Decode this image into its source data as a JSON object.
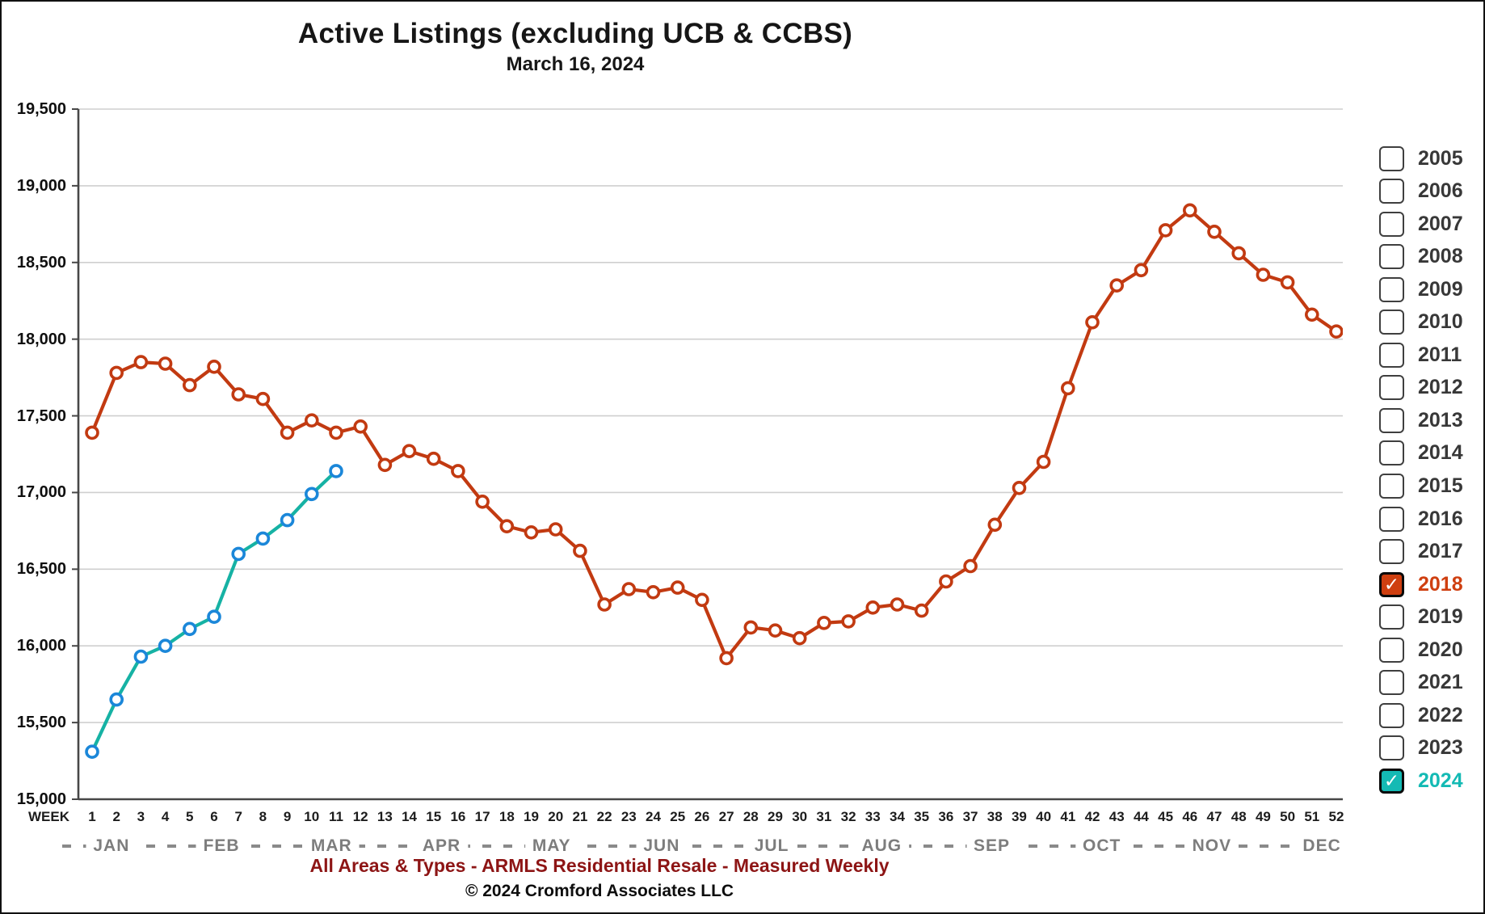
{
  "title": "Active Listings (excluding UCB & CCBS)",
  "subtitle": "March 16, 2024",
  "footer_note": "All Areas & Types - ARMLS Residential Resale - Measured Weekly",
  "copyright": "© 2024 Cromford Associates LLC",
  "week_axis_label": "WEEK",
  "colors": {
    "grid": "#cfcfcf",
    "axis": "#474747",
    "red_series": "#c23a11",
    "teal_line": "#16b2a4",
    "blue_marker": "#1b87d9",
    "checked_red": "#cf3f10",
    "checked_teal": "#14bab4",
    "month_text": "#7d7d7d",
    "note_text": "#8d1515"
  },
  "legend": {
    "years": [
      {
        "label": "2005",
        "checked": false
      },
      {
        "label": "2006",
        "checked": false
      },
      {
        "label": "2007",
        "checked": false
      },
      {
        "label": "2008",
        "checked": false
      },
      {
        "label": "2009",
        "checked": false
      },
      {
        "label": "2010",
        "checked": false
      },
      {
        "label": "2011",
        "checked": false
      },
      {
        "label": "2012",
        "checked": false
      },
      {
        "label": "2013",
        "checked": false
      },
      {
        "label": "2014",
        "checked": false
      },
      {
        "label": "2015",
        "checked": false
      },
      {
        "label": "2016",
        "checked": false
      },
      {
        "label": "2017",
        "checked": false
      },
      {
        "label": "2018",
        "checked": true,
        "color": "#cf3f10"
      },
      {
        "label": "2019",
        "checked": false
      },
      {
        "label": "2020",
        "checked": false
      },
      {
        "label": "2021",
        "checked": false
      },
      {
        "label": "2022",
        "checked": false
      },
      {
        "label": "2023",
        "checked": false
      },
      {
        "label": "2024",
        "checked": true,
        "color": "#14bab4"
      }
    ],
    "check_glyph": "✓"
  },
  "chart_data": {
    "type": "line",
    "x_weeks": [
      1,
      2,
      3,
      4,
      5,
      6,
      7,
      8,
      9,
      10,
      11,
      12,
      13,
      14,
      15,
      16,
      17,
      18,
      19,
      20,
      21,
      22,
      23,
      24,
      25,
      26,
      27,
      28,
      29,
      30,
      31,
      32,
      33,
      34,
      35,
      36,
      37,
      38,
      39,
      40,
      41,
      42,
      43,
      44,
      45,
      46,
      47,
      48,
      49,
      50,
      51,
      52
    ],
    "month_labels": [
      "JAN",
      "FEB",
      "MAR",
      "APR",
      "MAY",
      "JUN",
      "JUL",
      "AUG",
      "SEP",
      "OCT",
      "NOV",
      "DEC"
    ],
    "ylim": [
      15000,
      19500
    ],
    "ytick_step": 500,
    "grid": true,
    "legend_position": "right",
    "series": [
      {
        "name": "2018",
        "line_color": "#c23a11",
        "marker_color": "#c23a11",
        "values": [
          17390,
          17780,
          17850,
          17840,
          17700,
          17820,
          17640,
          17610,
          17390,
          17470,
          17390,
          17430,
          17180,
          17270,
          17220,
          17140,
          16940,
          16780,
          16740,
          16760,
          16620,
          16270,
          16370,
          16350,
          16380,
          16300,
          15920,
          16120,
          16100,
          16050,
          16150,
          16160,
          16250,
          16270,
          16230,
          16420,
          16520,
          16790,
          17030,
          17200,
          17680,
          18110,
          18350,
          18450,
          18710,
          18840,
          18700,
          18560,
          18420,
          18370,
          18160,
          18050
        ]
      },
      {
        "name": "2024",
        "line_color": "#16b2a4",
        "marker_color": "#1b87d9",
        "values": [
          15310,
          15650,
          15930,
          16000,
          16110,
          16190,
          16600,
          16700,
          16820,
          16990,
          17140
        ]
      }
    ]
  }
}
